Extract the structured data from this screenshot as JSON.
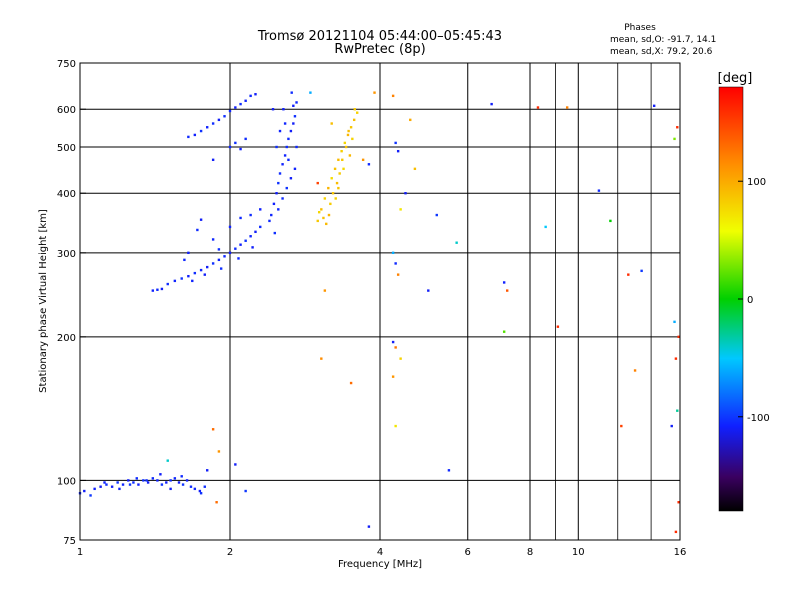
{
  "chart_data": {
    "type": "scatter",
    "title": "Tromsø 20121104 05:44:00–05:45:43",
    "subtitle": "RwPretec (8p)",
    "xlabel": "Frequency [MHz]",
    "ylabel": "Stationary phase Virtual Height [km]",
    "x_scale": "log",
    "y_scale": "log",
    "xlim": [
      1,
      16
    ],
    "ylim": [
      75,
      750
    ],
    "x_ticks": [
      1,
      2,
      4,
      6,
      8,
      10,
      16
    ],
    "y_ticks": [
      75,
      100,
      200,
      300,
      400,
      500,
      600,
      750
    ],
    "grid": true,
    "stats": {
      "heading": "Phases",
      "line_o": "mean, sd,O: -91.7, 14.1",
      "line_x": "mean, sd,X:  79.2, 20.6"
    },
    "colorbar": {
      "label": "[deg]",
      "range": [
        -180,
        180
      ],
      "ticks": [
        -100,
        0,
        100
      ]
    },
    "series": [
      {
        "points": [
          [
            1.0,
            94,
            -105
          ],
          [
            1.02,
            95,
            -110
          ],
          [
            1.05,
            93,
            -100
          ],
          [
            1.07,
            96,
            -108
          ],
          [
            1.1,
            97,
            -112
          ],
          [
            1.13,
            98,
            -104
          ],
          [
            1.16,
            97,
            -110
          ],
          [
            1.19,
            99,
            -102
          ],
          [
            1.22,
            98,
            -106
          ],
          [
            1.25,
            100,
            -110
          ],
          [
            1.28,
            99,
            -104
          ],
          [
            1.31,
            98,
            -108
          ],
          [
            1.34,
            100,
            -103
          ],
          [
            1.37,
            99,
            -111
          ],
          [
            1.4,
            101,
            -105
          ],
          [
            1.43,
            100,
            -107
          ],
          [
            1.46,
            98,
            -102
          ],
          [
            1.49,
            99,
            -109
          ],
          [
            1.52,
            100,
            -104
          ],
          [
            1.55,
            101,
            -106
          ],
          [
            1.58,
            99,
            -110
          ],
          [
            1.61,
            98,
            -101
          ],
          [
            1.64,
            100,
            -108
          ],
          [
            1.67,
            97,
            -104
          ],
          [
            1.7,
            96,
            -106
          ],
          [
            1.74,
            95,
            -110
          ],
          [
            1.78,
            97,
            -103
          ],
          [
            1.2,
            96,
            -107
          ],
          [
            1.3,
            101,
            -104
          ],
          [
            1.45,
            103,
            -109
          ],
          [
            1.6,
            102,
            -105
          ],
          [
            1.75,
            94,
            -102
          ],
          [
            2.05,
            108,
            -110
          ],
          [
            2.15,
            95,
            -100
          ],
          [
            1.52,
            96,
            -110
          ],
          [
            1.36,
            100,
            -104
          ],
          [
            1.12,
            99,
            -107
          ],
          [
            1.26,
            98,
            -101
          ],
          [
            1.4,
            250,
            -108
          ],
          [
            1.43,
            251,
            -105
          ],
          [
            1.46,
            252,
            -110
          ],
          [
            1.5,
            258,
            -104
          ],
          [
            1.55,
            262,
            -107
          ],
          [
            1.6,
            265,
            -102
          ],
          [
            1.65,
            268,
            -109
          ],
          [
            1.7,
            272,
            -104
          ],
          [
            1.75,
            276,
            -106
          ],
          [
            1.8,
            280,
            -110
          ],
          [
            1.85,
            285,
            -103
          ],
          [
            1.9,
            290,
            -107
          ],
          [
            1.95,
            295,
            -105
          ],
          [
            2.0,
            300,
            -110
          ],
          [
            2.05,
            306,
            -104
          ],
          [
            2.1,
            312,
            -108
          ],
          [
            2.15,
            318,
            -102
          ],
          [
            2.2,
            325,
            -106
          ],
          [
            2.25,
            332,
            -110
          ],
          [
            2.3,
            340,
            -104
          ],
          [
            1.62,
            290,
            -105
          ],
          [
            1.65,
            300,
            -108
          ],
          [
            1.72,
            335,
            -104
          ],
          [
            1.75,
            352,
            -110
          ],
          [
            1.85,
            320,
            -106
          ],
          [
            1.9,
            305,
            -103
          ],
          [
            2.0,
            340,
            -107
          ],
          [
            2.1,
            355,
            -105
          ],
          [
            2.2,
            360,
            -104
          ],
          [
            2.3,
            370,
            -108
          ],
          [
            1.68,
            262,
            -107
          ],
          [
            1.78,
            270,
            -110
          ],
          [
            1.92,
            278,
            -103
          ],
          [
            2.08,
            292,
            -106
          ],
          [
            2.22,
            308,
            -109
          ],
          [
            1.65,
            525,
            -105
          ],
          [
            1.7,
            530,
            -108
          ],
          [
            1.75,
            540,
            -102
          ],
          [
            1.8,
            550,
            -107
          ],
          [
            1.85,
            560,
            -104
          ],
          [
            1.9,
            570,
            -110
          ],
          [
            1.95,
            580,
            -103
          ],
          [
            2.0,
            595,
            -106
          ],
          [
            2.05,
            605,
            -109
          ],
          [
            2.1,
            615,
            -104
          ],
          [
            2.15,
            625,
            -107
          ],
          [
            2.2,
            640,
            -105
          ],
          [
            2.25,
            645,
            -110
          ],
          [
            2.0,
            500,
            -106
          ],
          [
            2.05,
            510,
            -103
          ],
          [
            2.1,
            495,
            -108
          ],
          [
            2.15,
            520,
            -104
          ],
          [
            1.85,
            470,
            -110
          ],
          [
            2.4,
            350,
            -105
          ],
          [
            2.45,
            380,
            -108
          ],
          [
            2.5,
            420,
            -102
          ],
          [
            2.55,
            460,
            -107
          ],
          [
            2.6,
            500,
            -104
          ],
          [
            2.65,
            540,
            -110
          ],
          [
            2.7,
            580,
            -103
          ],
          [
            2.72,
            620,
            -106
          ],
          [
            2.48,
            400,
            -109
          ],
          [
            2.52,
            440,
            -104
          ],
          [
            2.58,
            480,
            -107
          ],
          [
            2.62,
            520,
            -105
          ],
          [
            2.68,
            560,
            -110
          ],
          [
            2.42,
            360,
            -106
          ],
          [
            2.46,
            330,
            -103
          ],
          [
            2.56,
            600,
            -108
          ],
          [
            2.66,
            650,
            -104
          ],
          [
            2.44,
            600,
            -110
          ],
          [
            2.5,
            370,
            -106
          ],
          [
            2.6,
            410,
            -102
          ],
          [
            2.7,
            450,
            -107
          ],
          [
            2.55,
            390,
            -104
          ],
          [
            2.65,
            430,
            -110
          ],
          [
            2.48,
            500,
            -103
          ],
          [
            2.58,
            560,
            -106
          ],
          [
            2.68,
            610,
            -109
          ],
          [
            2.62,
            470,
            -104
          ],
          [
            2.52,
            540,
            -107
          ],
          [
            2.72,
            500,
            -105
          ],
          [
            3.0,
            350,
            85
          ],
          [
            3.05,
            370,
            90
          ],
          [
            3.1,
            390,
            80
          ],
          [
            3.15,
            410,
            95
          ],
          [
            3.2,
            430,
            75
          ],
          [
            3.25,
            450,
            88
          ],
          [
            3.3,
            470,
            92
          ],
          [
            3.35,
            490,
            82
          ],
          [
            3.4,
            510,
            78
          ],
          [
            3.45,
            530,
            94
          ],
          [
            3.5,
            550,
            86
          ],
          [
            3.55,
            570,
            90
          ],
          [
            3.6,
            590,
            80
          ],
          [
            3.08,
            355,
            88
          ],
          [
            3.18,
            380,
            83
          ],
          [
            3.28,
            420,
            91
          ],
          [
            3.38,
            450,
            77
          ],
          [
            3.48,
            480,
            93
          ],
          [
            3.22,
            400,
            87
          ],
          [
            3.32,
            440,
            84
          ],
          [
            3.42,
            500,
            89
          ],
          [
            3.52,
            520,
            79
          ],
          [
            3.12,
            345,
            92
          ],
          [
            3.26,
            390,
            81
          ],
          [
            3.36,
            470,
            86
          ],
          [
            3.46,
            540,
            90
          ],
          [
            3.02,
            365,
            78
          ],
          [
            3.16,
            360,
            95
          ],
          [
            3.56,
            600,
            84
          ],
          [
            3.3,
            410,
            88
          ],
          [
            2.9,
            650,
            -60
          ],
          [
            3.0,
            420,
            150
          ],
          [
            3.2,
            560,
            90
          ],
          [
            3.1,
            250,
            110
          ],
          [
            3.05,
            180,
            115
          ],
          [
            3.5,
            160,
            130
          ],
          [
            3.7,
            470,
            110
          ],
          [
            3.8,
            460,
            -105
          ],
          [
            3.9,
            650,
            110
          ],
          [
            4.25,
            640,
            120
          ],
          [
            4.3,
            510,
            -102
          ],
          [
            4.35,
            490,
            -110
          ],
          [
            4.4,
            370,
            70
          ],
          [
            4.25,
            300,
            -60
          ],
          [
            4.3,
            285,
            -105
          ],
          [
            4.35,
            270,
            120
          ],
          [
            4.25,
            195,
            -110
          ],
          [
            4.3,
            190,
            125
          ],
          [
            4.4,
            180,
            80
          ],
          [
            4.25,
            165,
            110
          ],
          [
            4.3,
            130,
            70
          ],
          [
            4.5,
            400,
            -110
          ],
          [
            4.6,
            570,
            100
          ],
          [
            4.7,
            450,
            90
          ],
          [
            5.0,
            250,
            -110
          ],
          [
            5.2,
            360,
            -100
          ],
          [
            5.5,
            105,
            -105
          ],
          [
            5.7,
            315,
            -40
          ],
          [
            6.7,
            615,
            -110
          ],
          [
            7.1,
            260,
            -108
          ],
          [
            7.2,
            250,
            140
          ],
          [
            7.1,
            205,
            20
          ],
          [
            8.3,
            605,
            160
          ],
          [
            8.6,
            340,
            -50
          ],
          [
            9.1,
            210,
            160
          ],
          [
            9.5,
            605,
            120
          ],
          [
            11.0,
            405,
            -105
          ],
          [
            11.6,
            350,
            0
          ],
          [
            12.2,
            130,
            150
          ],
          [
            12.6,
            270,
            160
          ],
          [
            13.0,
            170,
            120
          ],
          [
            13.4,
            275,
            -100
          ],
          [
            14.2,
            610,
            -110
          ],
          [
            15.4,
            130,
            -110
          ],
          [
            15.6,
            520,
            30
          ],
          [
            15.8,
            550,
            160
          ],
          [
            15.9,
            200,
            160
          ],
          [
            15.7,
            180,
            160
          ],
          [
            15.8,
            140,
            -30
          ],
          [
            15.9,
            90,
            160
          ],
          [
            15.7,
            78,
            160
          ],
          [
            15.6,
            215,
            -60
          ],
          [
            1.85,
            128,
            130
          ],
          [
            1.9,
            115,
            110
          ],
          [
            1.8,
            105,
            -110
          ],
          [
            1.88,
            90,
            130
          ],
          [
            1.5,
            110,
            -40
          ],
          [
            3.8,
            80,
            -110
          ]
        ]
      }
    ]
  }
}
